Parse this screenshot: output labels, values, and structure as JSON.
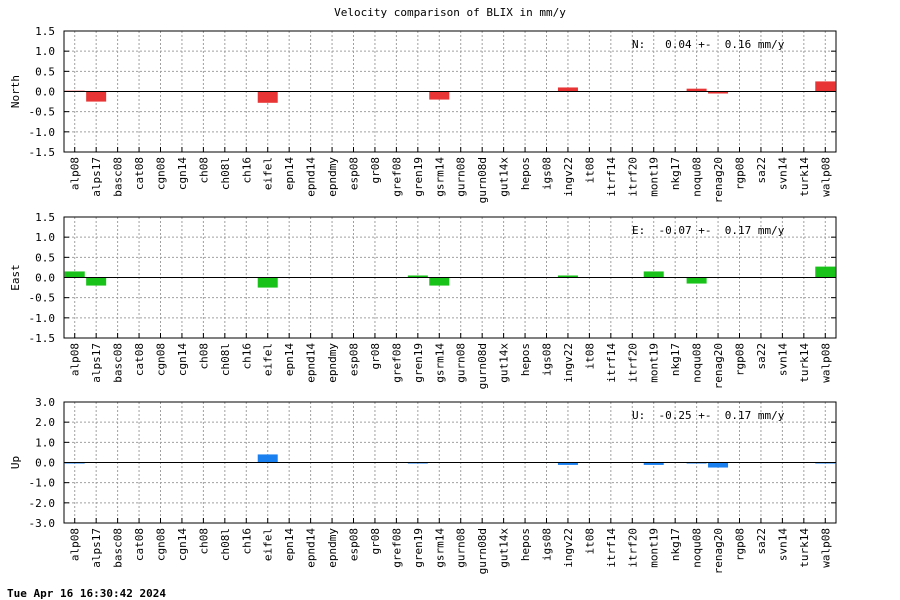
{
  "title": "Velocity comparison of BLIX in mm/y",
  "timestamp": "Tue Apr 16 16:30:42 2024",
  "colors": {
    "north": "#e83434",
    "east": "#19c219",
    "up": "#1a80f0"
  },
  "chart_data": {
    "type": "bar",
    "categories": [
      "alp08",
      "alps17",
      "basc08",
      "cat08",
      "cgn08",
      "cgn14",
      "ch08",
      "ch08l",
      "ch16",
      "eifel",
      "epn14",
      "epnd14",
      "epndmy",
      "esp08",
      "gr08",
      "gref08",
      "gren19",
      "gsrm14",
      "gurn08",
      "gurn08d",
      "gut14x",
      "hepos",
      "igs08",
      "ingv22",
      "it08",
      "itrf14",
      "itrf20",
      "mont19",
      "nkg17",
      "noqu08",
      "renag20",
      "rgp08",
      "sa22",
      "svn14",
      "turk14",
      "walp08"
    ],
    "panels": [
      {
        "ylabel": "North",
        "ylim": [
          -1.5,
          1.5
        ],
        "yticks": [
          "1.5",
          "1.0",
          "0.5",
          "0.0",
          "-0.5",
          "-1.0",
          "-1.5"
        ],
        "annotation": "N:   0.04 +-  0.16 mm/y",
        "color_key": "north",
        "values": [
          0.02,
          -0.25,
          0,
          0,
          0,
          0,
          0,
          0,
          0,
          -0.28,
          0,
          0,
          0,
          0,
          0,
          0,
          0,
          -0.2,
          0,
          0,
          0,
          0,
          0,
          0.1,
          0,
          0,
          0,
          0,
          0,
          0.07,
          -0.05,
          0,
          0,
          0,
          0,
          0.25
        ]
      },
      {
        "ylabel": "East",
        "ylim": [
          -1.5,
          1.5
        ],
        "yticks": [
          "1.5",
          "1.0",
          "0.5",
          "0.0",
          "-0.5",
          "-1.0",
          "-1.5"
        ],
        "annotation": "E:  -0.07 +-  0.17 mm/y",
        "color_key": "east",
        "values": [
          0.15,
          -0.2,
          0,
          0,
          0,
          0,
          0,
          0,
          0,
          -0.25,
          0,
          0,
          0,
          0,
          0,
          0,
          0.05,
          -0.2,
          0,
          0,
          0,
          0,
          0,
          0.05,
          0,
          0,
          0,
          0.15,
          0,
          -0.15,
          0,
          0,
          0,
          0,
          0,
          0.27
        ]
      },
      {
        "ylabel": "Up",
        "ylim": [
          -3,
          3
        ],
        "yticks": [
          "3.0",
          "2.0",
          "1.0",
          "0.0",
          "-1.0",
          "-2.0",
          "-3.0"
        ],
        "annotation": "U:  -0.25 +-  0.17 mm/y",
        "color_key": "up",
        "values": [
          -0.05,
          0,
          0,
          0,
          0,
          0,
          0,
          0,
          0,
          0.4,
          0,
          0,
          0,
          0,
          0,
          0,
          -0.05,
          0,
          0,
          0,
          0,
          0,
          0,
          -0.12,
          0,
          0,
          0,
          -0.12,
          0,
          -0.05,
          -0.25,
          0,
          0,
          0,
          0,
          -0.05
        ]
      }
    ],
    "grid": true
  }
}
